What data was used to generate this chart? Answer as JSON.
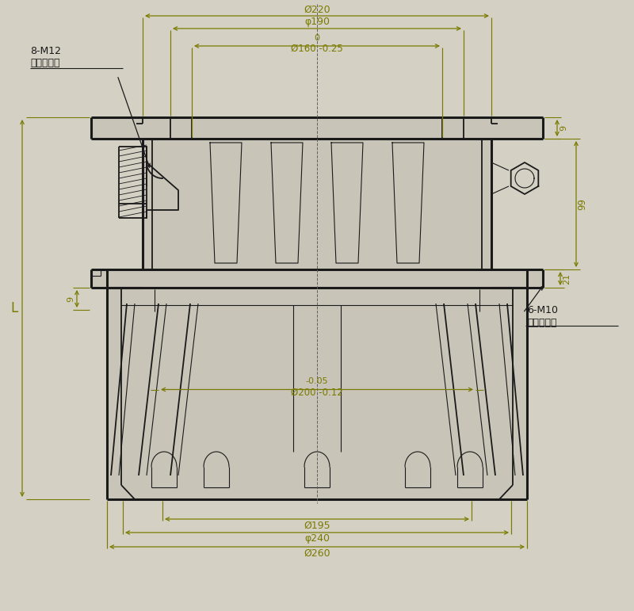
{
  "bg_color": "#d4d0c4",
  "line_color": "#1a1a1a",
  "dim_color": "#7a7a00",
  "dim_220": "Ø220",
  "dim_190": "φ190",
  "dim_160_upper": "0",
  "dim_160": "Ø160 -0.25",
  "dim_200_upper": "-0.05",
  "dim_200": "Ø200 -0.12",
  "dim_195": "Ø195",
  "dim_240": "φ240",
  "dim_260": "Ø260",
  "label_8m12": "8-M12",
  "label_dianji": "电机安装孔",
  "label_6m10": "6-M10",
  "label_yilun": "叶轮安装孔",
  "dim_99": "99",
  "dim_12": "21",
  "dim_9_top": "9",
  "dim_9_side": "9",
  "dim_L": "L"
}
